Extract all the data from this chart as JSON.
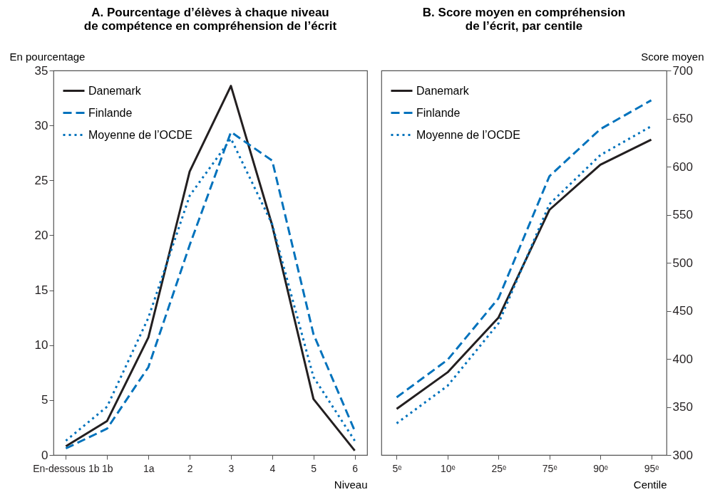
{
  "chart_data": [
    {
      "type": "line",
      "title": "A. Pourcentage d’élèves à chaque niveau\nde compétence en compréhension de l’écrit",
      "xlabel": "Niveau",
      "ylabel": "En pourcentage",
      "categories": [
        "En-dessous 1b",
        "1b",
        "1a",
        "2",
        "3",
        "4",
        "5",
        "6"
      ],
      "series": [
        {
          "name": "Danemark",
          "color": "#231f20",
          "line_style": "solid",
          "values": [
            0.8,
            3.1,
            10.7,
            25.8,
            33.6,
            20.9,
            5.1,
            0.4
          ]
        },
        {
          "name": "Finlande",
          "color": "#0072bc",
          "line_style": "dashed",
          "values": [
            0.6,
            2.4,
            8.0,
            19.1,
            29.4,
            26.8,
            11.0,
            2.2
          ]
        },
        {
          "name": "Moyenne de l’OCDE",
          "color": "#0072bc",
          "line_style": "dotted",
          "values": [
            1.3,
            4.4,
            12.5,
            23.6,
            28.8,
            21.0,
            7.1,
            1.3
          ]
        }
      ],
      "ylim": [
        0,
        35
      ],
      "yticks": [
        0,
        5,
        10,
        15,
        20,
        25,
        30,
        35
      ],
      "grid": false,
      "legend": "top left"
    },
    {
      "type": "line",
      "title": "B. Score moyen en compréhension\nde l’écrit, par centile",
      "xlabel": "Centile",
      "ylabel": "Score moyen",
      "categories": [
        "5ᵉ",
        "10ᵉ",
        "25ᵉ",
        "75ᵉ",
        "90ᵉ",
        "95ᵉ"
      ],
      "series": [
        {
          "name": "Danemark",
          "color": "#231f20",
          "line_style": "solid",
          "values": [
            348,
            386,
            443,
            555,
            602,
            628
          ]
        },
        {
          "name": "Finlande",
          "color": "#0072bc",
          "line_style": "dashed",
          "values": [
            360,
            399,
            463,
            590,
            639,
            669
          ]
        },
        {
          "name": "Moyenne de l’OCDE",
          "color": "#0072bc",
          "line_style": "dotted",
          "values": [
            333,
            372,
            437,
            561,
            612,
            642
          ]
        }
      ],
      "ylim": [
        300,
        700
      ],
      "yticks": [
        300,
        350,
        400,
        450,
        500,
        550,
        600,
        650,
        700
      ],
      "grid": false,
      "legend": "top left"
    }
  ]
}
